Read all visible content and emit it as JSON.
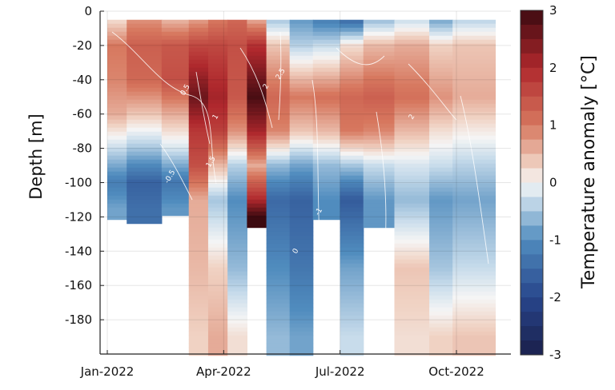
{
  "chart_data": {
    "type": "heatmap",
    "title": "",
    "xlabel": "",
    "ylabel": "Depth [m]",
    "colorbar_label": "Temperature anomaly [°C]",
    "x_ticks": [
      "Jan-2022",
      "Apr-2022",
      "Jul-2022",
      "Oct-2022"
    ],
    "y_ticks": [
      0,
      -20,
      -40,
      -60,
      -80,
      -100,
      -120,
      -140,
      -160,
      -180
    ],
    "colorbar_ticks": [
      3,
      2,
      1,
      0,
      -1,
      -2,
      -3
    ],
    "ylim": [
      -200,
      0
    ],
    "clim": [
      -3,
      3
    ],
    "colormap": "diverging blue-white-red",
    "colors": {
      "min": "#1a1f4b",
      "neg": "#2f6fad",
      "zero": "#f5f5f5",
      "pos": "#c0392b",
      "max": "#3d0a10"
    },
    "grid": true,
    "contour_labels": [
      "0.5",
      "1",
      "1.5",
      "2",
      "2.5",
      "-0.5",
      "-1",
      "0",
      "1.5",
      "2"
    ],
    "x_months": [
      0,
      1,
      2,
      3,
      4,
      5,
      6,
      7,
      8,
      9,
      10,
      11
    ],
    "depth_profile_blocks": [
      {
        "start": 0.0,
        "end": 0.5,
        "bottom": -120,
        "profile": [
          [
            -5,
            0.2
          ],
          [
            -20,
            1.0
          ],
          [
            -40,
            0.9
          ],
          [
            -60,
            0.6
          ],
          [
            -80,
            -0.3
          ],
          [
            -100,
            -1.2
          ],
          [
            -115,
            -0.8
          ]
        ]
      },
      {
        "start": 0.5,
        "end": 1.4,
        "bottom": -122,
        "profile": [
          [
            -5,
            0.8
          ],
          [
            -20,
            1.3
          ],
          [
            -40,
            1.2
          ],
          [
            -60,
            0.4
          ],
          [
            -80,
            -0.5
          ],
          [
            -100,
            -1.6
          ],
          [
            -115,
            -1.4
          ]
        ]
      },
      {
        "start": 1.4,
        "end": 2.1,
        "bottom": -118,
        "profile": [
          [
            -5,
            0.5
          ],
          [
            -20,
            1.4
          ],
          [
            -40,
            1.5
          ],
          [
            -60,
            0.6
          ],
          [
            -80,
            -0.2
          ],
          [
            -100,
            -1.3
          ],
          [
            -115,
            -0.9
          ]
        ]
      },
      {
        "start": 2.1,
        "end": 2.6,
        "bottom": -200,
        "profile": [
          [
            -5,
            0.7
          ],
          [
            -20,
            1.6
          ],
          [
            -50,
            2.6
          ],
          [
            -70,
            1.8
          ],
          [
            -90,
            1.5
          ],
          [
            -110,
            0.6
          ],
          [
            -150,
            0.5
          ],
          [
            -190,
            0.3
          ]
        ]
      },
      {
        "start": 2.6,
        "end": 3.1,
        "bottom": -200,
        "profile": [
          [
            -5,
            1.0
          ],
          [
            -20,
            1.6
          ],
          [
            -50,
            2.1
          ],
          [
            -70,
            1.7
          ],
          [
            -90,
            0.5
          ],
          [
            -110,
            -0.5
          ],
          [
            -150,
            0.3
          ],
          [
            -190,
            0.6
          ]
        ]
      },
      {
        "start": 3.1,
        "end": 3.6,
        "bottom": -200,
        "profile": [
          [
            -5,
            1.2
          ],
          [
            -20,
            1.5
          ],
          [
            -50,
            1.4
          ],
          [
            -70,
            0.8
          ],
          [
            -90,
            -0.4
          ],
          [
            -110,
            -1.0
          ],
          [
            -150,
            -0.6
          ],
          [
            -190,
            0.2
          ]
        ]
      },
      {
        "start": 3.6,
        "end": 4.1,
        "bottom": -125,
        "profile": [
          [
            -5,
            0.6
          ],
          [
            -20,
            1.9
          ],
          [
            -50,
            2.9
          ],
          [
            -70,
            2.1
          ],
          [
            -90,
            0.6
          ],
          [
            -110,
            2.0
          ],
          [
            -120,
            3.0
          ]
        ]
      },
      {
        "start": 4.1,
        "end": 4.7,
        "bottom": -200,
        "profile": [
          [
            -5,
            -0.5
          ],
          [
            -20,
            0.4
          ],
          [
            -50,
            1.2
          ],
          [
            -70,
            0.9
          ],
          [
            -90,
            -0.6
          ],
          [
            -110,
            -1.5
          ],
          [
            -150,
            -1.0
          ],
          [
            -190,
            -0.6
          ]
        ]
      },
      {
        "start": 4.7,
        "end": 5.3,
        "bottom": -200,
        "profile": [
          [
            -5,
            -0.9
          ],
          [
            -20,
            -0.4
          ],
          [
            -50,
            1.0
          ],
          [
            -70,
            0.4
          ],
          [
            -90,
            -0.8
          ],
          [
            -110,
            -1.6
          ],
          [
            -150,
            -1.3
          ],
          [
            -190,
            -0.8
          ]
        ]
      },
      {
        "start": 5.3,
        "end": 6.0,
        "bottom": -120,
        "profile": [
          [
            -5,
            -1.2
          ],
          [
            -20,
            -0.3
          ],
          [
            -50,
            1.1
          ],
          [
            -70,
            0.5
          ],
          [
            -90,
            -0.6
          ],
          [
            -110,
            -1.0
          ]
        ]
      },
      {
        "start": 6.0,
        "end": 6.6,
        "bottom": -200,
        "profile": [
          [
            -5,
            -1.5
          ],
          [
            -20,
            0.2
          ],
          [
            -50,
            1.2
          ],
          [
            -70,
            1.0
          ],
          [
            -90,
            -0.5
          ],
          [
            -110,
            -1.7
          ],
          [
            -150,
            -0.8
          ],
          [
            -190,
            -0.3
          ]
        ]
      },
      {
        "start": 6.6,
        "end": 7.4,
        "bottom": -125,
        "profile": [
          [
            -5,
            -0.6
          ],
          [
            -20,
            0.5
          ],
          [
            -50,
            1.3
          ],
          [
            -70,
            0.9
          ],
          [
            -90,
            -0.3
          ],
          [
            -110,
            -0.9
          ]
        ]
      },
      {
        "start": 7.4,
        "end": 8.3,
        "bottom": -200,
        "profile": [
          [
            -5,
            -0.3
          ],
          [
            -20,
            0.6
          ],
          [
            -50,
            1.1
          ],
          [
            -70,
            0.5
          ],
          [
            -90,
            -0.2
          ],
          [
            -110,
            -0.6
          ],
          [
            -150,
            0.4
          ],
          [
            -190,
            0.2
          ]
        ]
      },
      {
        "start": 8.3,
        "end": 8.9,
        "bottom": -200,
        "profile": [
          [
            -5,
            -0.8
          ],
          [
            -20,
            0.3
          ],
          [
            -50,
            0.8
          ],
          [
            -70,
            0.2
          ],
          [
            -90,
            -0.3
          ],
          [
            -110,
            -0.9
          ],
          [
            -150,
            -0.5
          ],
          [
            -190,
            0.3
          ]
        ]
      },
      {
        "start": 8.9,
        "end": 10.0,
        "bottom": -200,
        "profile": [
          [
            -5,
            -0.4
          ],
          [
            -20,
            0.4
          ],
          [
            -50,
            0.6
          ],
          [
            -70,
            0.1
          ],
          [
            -90,
            -0.4
          ],
          [
            -110,
            -0.8
          ],
          [
            -150,
            -0.3
          ],
          [
            -190,
            0.4
          ]
        ]
      }
    ]
  }
}
